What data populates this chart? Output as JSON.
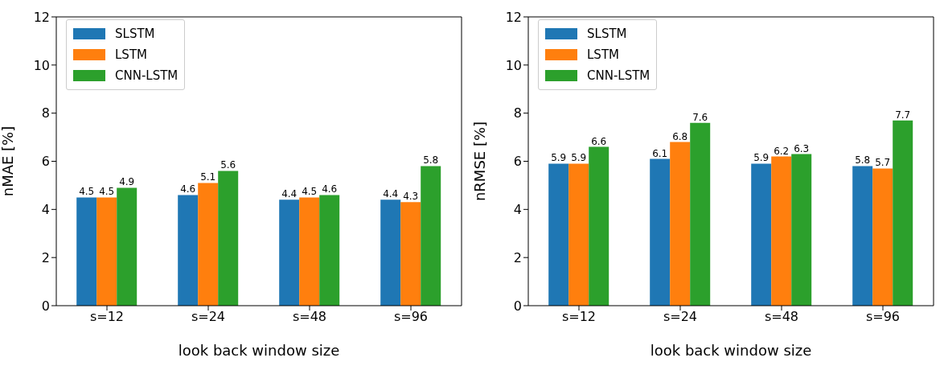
{
  "chart_data": [
    {
      "type": "bar",
      "categories": [
        "s=12",
        "s=24",
        "s=48",
        "s=96"
      ],
      "xlabel": "look back window size",
      "ylabel": "nMAE [%]",
      "ylim": [
        0,
        12
      ],
      "yticks": [
        0,
        2,
        4,
        6,
        8,
        10,
        12
      ],
      "legend": "top left",
      "data_labels": true,
      "grid": false,
      "series": [
        {
          "name": "SLSTM",
          "color": "#1f77b4",
          "values": [
            4.5,
            4.6,
            4.4,
            4.4
          ]
        },
        {
          "name": "LSTM",
          "color": "#ff7f0e",
          "values": [
            4.5,
            5.1,
            4.5,
            4.3
          ]
        },
        {
          "name": "CNN-LSTM",
          "color": "#2ca02c",
          "values": [
            4.9,
            5.6,
            4.6,
            5.8
          ]
        }
      ]
    },
    {
      "type": "bar",
      "categories": [
        "s=12",
        "s=24",
        "s=48",
        "s=96"
      ],
      "xlabel": "look back window size",
      "ylabel": "nRMSE [%]",
      "ylim": [
        0,
        12
      ],
      "yticks": [
        0,
        2,
        4,
        6,
        8,
        10,
        12
      ],
      "legend": "top left",
      "data_labels": true,
      "grid": false,
      "series": [
        {
          "name": "SLSTM",
          "color": "#1f77b4",
          "values": [
            5.9,
            6.1,
            5.9,
            5.8
          ]
        },
        {
          "name": "LSTM",
          "color": "#ff7f0e",
          "values": [
            5.9,
            6.8,
            6.2,
            5.7
          ]
        },
        {
          "name": "CNN-LSTM",
          "color": "#2ca02c",
          "values": [
            6.6,
            7.6,
            6.3,
            7.7
          ]
        }
      ]
    }
  ]
}
